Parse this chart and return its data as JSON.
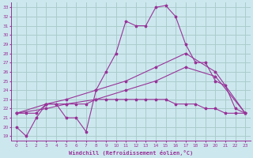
{
  "xlabel": "Windchill (Refroidissement éolien,°C)",
  "xlim": [
    -0.5,
    23.5
  ],
  "ylim": [
    18.5,
    33.5
  ],
  "xticks": [
    0,
    1,
    2,
    3,
    4,
    5,
    6,
    7,
    8,
    9,
    10,
    11,
    12,
    13,
    14,
    15,
    16,
    17,
    18,
    19,
    20,
    21,
    22,
    23
  ],
  "yticks": [
    19,
    20,
    21,
    22,
    23,
    24,
    25,
    26,
    27,
    28,
    29,
    30,
    31,
    32,
    33
  ],
  "bg_color": "#cce8ee",
  "line_color": "#993399",
  "grid_color": "#aacccc",
  "line1_x": [
    0,
    1,
    2,
    3,
    4,
    5,
    6,
    7,
    8,
    9,
    10,
    11,
    12,
    13,
    14,
    15,
    16,
    17,
    18,
    19,
    20,
    21,
    22,
    23
  ],
  "line1_y": [
    20,
    19,
    21,
    22.5,
    22.5,
    21,
    21,
    19.5,
    24,
    26,
    28,
    31.5,
    31,
    31,
    33,
    33.2,
    32,
    29,
    27,
    27,
    25,
    24.5,
    22,
    21.5
  ],
  "line2_x": [
    0,
    1,
    2,
    3,
    4,
    5,
    6,
    7,
    8,
    9,
    10,
    11,
    12,
    13,
    14,
    15,
    16,
    17,
    18,
    19,
    20,
    21,
    22,
    23
  ],
  "line2_y": [
    21.5,
    21.5,
    21.5,
    22.5,
    22.5,
    22.5,
    22.5,
    22.5,
    23,
    23,
    23,
    23,
    23,
    23,
    23,
    23,
    22.5,
    22.5,
    22.5,
    22,
    22,
    21.5,
    21.5,
    21.5
  ],
  "line3_x": [
    0,
    3,
    5,
    8,
    11,
    14,
    17,
    20,
    23
  ],
  "line3_y": [
    21.5,
    22.5,
    23,
    24,
    25,
    26.5,
    28,
    26,
    21.5
  ],
  "line4_x": [
    0,
    3,
    5,
    8,
    11,
    14,
    17,
    20,
    23
  ],
  "line4_y": [
    21.5,
    22,
    22.5,
    23,
    24,
    25,
    26.5,
    25.5,
    21.5
  ]
}
